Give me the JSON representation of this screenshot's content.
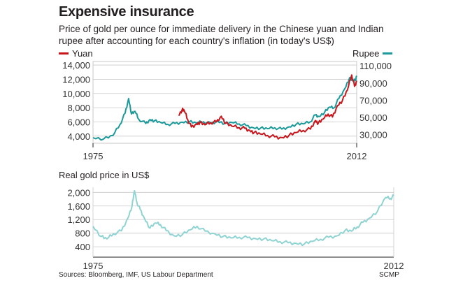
{
  "title": "Expensive insurance",
  "subtitle": "Price of gold per ounce for immediate delivery in the Chinese yuan and Indian rupee after accounting for each country's inflation (in today's US$)",
  "source": "Sources: Bloomberg, IMF, US Labour Department",
  "credit": "SCMP",
  "colors": {
    "yuan": "#c8161d",
    "rupee": "#1c9a9b",
    "real": "#8fd3d3",
    "grid": "#c9c9c9",
    "axis": "#231f20"
  },
  "chart_data": [
    {
      "type": "line",
      "x_ticks": [
        "1975",
        "2012"
      ],
      "xlim": [
        1975,
        2012
      ],
      "left_axis": {
        "ticks": [
          "14,000",
          "12,000",
          "10,000",
          "8,000",
          "6,000",
          "4,000"
        ],
        "ylim": [
          3000,
          14500
        ]
      },
      "right_axis": {
        "ticks": [
          "110,000",
          "90,000",
          "70,000",
          "50,000",
          "30,000"
        ],
        "ylim": [
          20000,
          115000
        ]
      },
      "series": [
        {
          "name": "Yuan",
          "axis": "left",
          "x": [
            1987,
            1987.5,
            1987.8,
            1988.3,
            1988.8,
            1989.5,
            1990,
            1990.7,
            1991.5,
            1992.3,
            1993,
            1993.6,
            1994.5,
            1995.5,
            1996.3,
            1997,
            1997.6,
            1998.5,
            1999.5,
            2000.5,
            2001.5,
            2002.5,
            2003.5,
            2004.5,
            2005.5,
            2006.2,
            2006.6,
            2007.3,
            2008,
            2008.6,
            2009.3,
            2010,
            2010.7,
            2011.3,
            2011.7,
            2012
          ],
          "y": [
            6900,
            7700,
            7600,
            6300,
            5300,
            5700,
            5900,
            5600,
            5900,
            6000,
            6800,
            5800,
            5400,
            5200,
            5100,
            4800,
            4500,
            4300,
            4100,
            3900,
            3800,
            4100,
            4500,
            4800,
            5000,
            6200,
            5800,
            6400,
            7100,
            6700,
            8300,
            9000,
            10500,
            12600,
            11000,
            11800
          ]
        },
        {
          "name": "Rupee",
          "axis": "right",
          "x": [
            1975,
            1976.5,
            1977.8,
            1978.8,
            1979.5,
            1980.0,
            1980.4,
            1980.9,
            1981.4,
            1982.4,
            1983.0,
            1983.6,
            1984.5,
            1985.5,
            1986.5,
            1987.5,
            1988.5,
            1989.5,
            1990.5,
            1991.5,
            1992.5,
            1993.5,
            1994.5,
            1995.5,
            1996.5,
            1997.5,
            1998.5,
            1999.5,
            2000.5,
            2001.5,
            2002.5,
            2003.5,
            2004.5,
            2005.5,
            2006.2,
            2006.7,
            2007.5,
            2008.2,
            2008.8,
            2009.5,
            2010.3,
            2011,
            2011.5,
            2011.8,
            2012
          ],
          "y": [
            26500,
            25000,
            29000,
            42000,
            55000,
            72000,
            54000,
            57000,
            48000,
            43000,
            47500,
            46000,
            44000,
            42000,
            43000,
            44500,
            45000,
            43500,
            45000,
            43000,
            45500,
            43000,
            44000,
            42500,
            40500,
            38000,
            37500,
            37000,
            38000,
            36500,
            39000,
            42000,
            42500,
            45000,
            53000,
            51000,
            56000,
            62000,
            61000,
            72000,
            83000,
            96000,
            92000,
            94000,
            97000
          ]
        }
      ]
    },
    {
      "type": "line",
      "title": "Real gold price in US$",
      "x_ticks": [
        "1975",
        "2012"
      ],
      "xlim": [
        1975,
        2012
      ],
      "y_ticks": [
        "2,000",
        "1,600",
        "1,200",
        "800",
        "400"
      ],
      "ylim": [
        300,
        2150
      ],
      "series": [
        {
          "x": [
            1975,
            1976.0,
            1976.7,
            1977.5,
            1978.5,
            1979.3,
            1979.8,
            1980.1,
            1980.4,
            1980.8,
            1981.3,
            1982.0,
            1982.7,
            1983.3,
            1984.0,
            1985.0,
            1986.0,
            1987.0,
            1987.8,
            1988.8,
            1990.0,
            1991.0,
            1992.0,
            1993.0,
            1994.0,
            1995.0,
            1996.0,
            1997.0,
            1998.0,
            1999.0,
            2000.0,
            2001.0,
            2002.0,
            2003.0,
            2004.0,
            2005.0,
            2006.0,
            2006.8,
            2007.5,
            2008.2,
            2009.0,
            2010.0,
            2011.0,
            2011.6,
            2012
          ],
          "y": [
            1000,
            700,
            630,
            780,
            870,
            1250,
            1600,
            2050,
            1700,
            1500,
            1250,
            950,
            1100,
            1050,
            880,
            720,
            760,
            900,
            1000,
            860,
            780,
            700,
            660,
            680,
            670,
            640,
            630,
            580,
            550,
            520,
            500,
            480,
            560,
            620,
            680,
            720,
            880,
            860,
            980,
            1120,
            1240,
            1450,
            1850,
            1820,
            1900
          ]
        }
      ]
    }
  ]
}
